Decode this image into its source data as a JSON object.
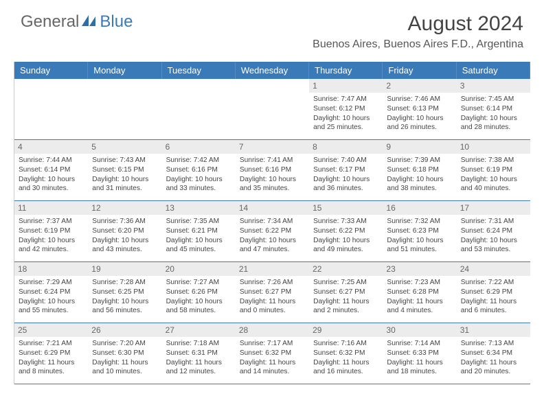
{
  "brand": {
    "part1": "General",
    "part2": "Blue"
  },
  "title": "August 2024",
  "location": "Buenos Aires, Buenos Aires F.D., Argentina",
  "colors": {
    "header_bg": "#3a7ab8",
    "header_text": "#ffffff",
    "daynum_bg": "#ececec",
    "border": "#3a7ab8",
    "body_text": "#444444",
    "page_bg": "#ffffff"
  },
  "day_headers": [
    "Sunday",
    "Monday",
    "Tuesday",
    "Wednesday",
    "Thursday",
    "Friday",
    "Saturday"
  ],
  "weeks": [
    [
      {
        "num": "",
        "sunrise": "",
        "sunset": "",
        "daylight1": "",
        "daylight2": ""
      },
      {
        "num": "",
        "sunrise": "",
        "sunset": "",
        "daylight1": "",
        "daylight2": ""
      },
      {
        "num": "",
        "sunrise": "",
        "sunset": "",
        "daylight1": "",
        "daylight2": ""
      },
      {
        "num": "",
        "sunrise": "",
        "sunset": "",
        "daylight1": "",
        "daylight2": ""
      },
      {
        "num": "1",
        "sunrise": "Sunrise: 7:47 AM",
        "sunset": "Sunset: 6:12 PM",
        "daylight1": "Daylight: 10 hours",
        "daylight2": "and 25 minutes."
      },
      {
        "num": "2",
        "sunrise": "Sunrise: 7:46 AM",
        "sunset": "Sunset: 6:13 PM",
        "daylight1": "Daylight: 10 hours",
        "daylight2": "and 26 minutes."
      },
      {
        "num": "3",
        "sunrise": "Sunrise: 7:45 AM",
        "sunset": "Sunset: 6:14 PM",
        "daylight1": "Daylight: 10 hours",
        "daylight2": "and 28 minutes."
      }
    ],
    [
      {
        "num": "4",
        "sunrise": "Sunrise: 7:44 AM",
        "sunset": "Sunset: 6:14 PM",
        "daylight1": "Daylight: 10 hours",
        "daylight2": "and 30 minutes."
      },
      {
        "num": "5",
        "sunrise": "Sunrise: 7:43 AM",
        "sunset": "Sunset: 6:15 PM",
        "daylight1": "Daylight: 10 hours",
        "daylight2": "and 31 minutes."
      },
      {
        "num": "6",
        "sunrise": "Sunrise: 7:42 AM",
        "sunset": "Sunset: 6:16 PM",
        "daylight1": "Daylight: 10 hours",
        "daylight2": "and 33 minutes."
      },
      {
        "num": "7",
        "sunrise": "Sunrise: 7:41 AM",
        "sunset": "Sunset: 6:16 PM",
        "daylight1": "Daylight: 10 hours",
        "daylight2": "and 35 minutes."
      },
      {
        "num": "8",
        "sunrise": "Sunrise: 7:40 AM",
        "sunset": "Sunset: 6:17 PM",
        "daylight1": "Daylight: 10 hours",
        "daylight2": "and 36 minutes."
      },
      {
        "num": "9",
        "sunrise": "Sunrise: 7:39 AM",
        "sunset": "Sunset: 6:18 PM",
        "daylight1": "Daylight: 10 hours",
        "daylight2": "and 38 minutes."
      },
      {
        "num": "10",
        "sunrise": "Sunrise: 7:38 AM",
        "sunset": "Sunset: 6:19 PM",
        "daylight1": "Daylight: 10 hours",
        "daylight2": "and 40 minutes."
      }
    ],
    [
      {
        "num": "11",
        "sunrise": "Sunrise: 7:37 AM",
        "sunset": "Sunset: 6:19 PM",
        "daylight1": "Daylight: 10 hours",
        "daylight2": "and 42 minutes."
      },
      {
        "num": "12",
        "sunrise": "Sunrise: 7:36 AM",
        "sunset": "Sunset: 6:20 PM",
        "daylight1": "Daylight: 10 hours",
        "daylight2": "and 43 minutes."
      },
      {
        "num": "13",
        "sunrise": "Sunrise: 7:35 AM",
        "sunset": "Sunset: 6:21 PM",
        "daylight1": "Daylight: 10 hours",
        "daylight2": "and 45 minutes."
      },
      {
        "num": "14",
        "sunrise": "Sunrise: 7:34 AM",
        "sunset": "Sunset: 6:22 PM",
        "daylight1": "Daylight: 10 hours",
        "daylight2": "and 47 minutes."
      },
      {
        "num": "15",
        "sunrise": "Sunrise: 7:33 AM",
        "sunset": "Sunset: 6:22 PM",
        "daylight1": "Daylight: 10 hours",
        "daylight2": "and 49 minutes."
      },
      {
        "num": "16",
        "sunrise": "Sunrise: 7:32 AM",
        "sunset": "Sunset: 6:23 PM",
        "daylight1": "Daylight: 10 hours",
        "daylight2": "and 51 minutes."
      },
      {
        "num": "17",
        "sunrise": "Sunrise: 7:31 AM",
        "sunset": "Sunset: 6:24 PM",
        "daylight1": "Daylight: 10 hours",
        "daylight2": "and 53 minutes."
      }
    ],
    [
      {
        "num": "18",
        "sunrise": "Sunrise: 7:29 AM",
        "sunset": "Sunset: 6:24 PM",
        "daylight1": "Daylight: 10 hours",
        "daylight2": "and 55 minutes."
      },
      {
        "num": "19",
        "sunrise": "Sunrise: 7:28 AM",
        "sunset": "Sunset: 6:25 PM",
        "daylight1": "Daylight: 10 hours",
        "daylight2": "and 56 minutes."
      },
      {
        "num": "20",
        "sunrise": "Sunrise: 7:27 AM",
        "sunset": "Sunset: 6:26 PM",
        "daylight1": "Daylight: 10 hours",
        "daylight2": "and 58 minutes."
      },
      {
        "num": "21",
        "sunrise": "Sunrise: 7:26 AM",
        "sunset": "Sunset: 6:27 PM",
        "daylight1": "Daylight: 11 hours",
        "daylight2": "and 0 minutes."
      },
      {
        "num": "22",
        "sunrise": "Sunrise: 7:25 AM",
        "sunset": "Sunset: 6:27 PM",
        "daylight1": "Daylight: 11 hours",
        "daylight2": "and 2 minutes."
      },
      {
        "num": "23",
        "sunrise": "Sunrise: 7:23 AM",
        "sunset": "Sunset: 6:28 PM",
        "daylight1": "Daylight: 11 hours",
        "daylight2": "and 4 minutes."
      },
      {
        "num": "24",
        "sunrise": "Sunrise: 7:22 AM",
        "sunset": "Sunset: 6:29 PM",
        "daylight1": "Daylight: 11 hours",
        "daylight2": "and 6 minutes."
      }
    ],
    [
      {
        "num": "25",
        "sunrise": "Sunrise: 7:21 AM",
        "sunset": "Sunset: 6:29 PM",
        "daylight1": "Daylight: 11 hours",
        "daylight2": "and 8 minutes."
      },
      {
        "num": "26",
        "sunrise": "Sunrise: 7:20 AM",
        "sunset": "Sunset: 6:30 PM",
        "daylight1": "Daylight: 11 hours",
        "daylight2": "and 10 minutes."
      },
      {
        "num": "27",
        "sunrise": "Sunrise: 7:18 AM",
        "sunset": "Sunset: 6:31 PM",
        "daylight1": "Daylight: 11 hours",
        "daylight2": "and 12 minutes."
      },
      {
        "num": "28",
        "sunrise": "Sunrise: 7:17 AM",
        "sunset": "Sunset: 6:32 PM",
        "daylight1": "Daylight: 11 hours",
        "daylight2": "and 14 minutes."
      },
      {
        "num": "29",
        "sunrise": "Sunrise: 7:16 AM",
        "sunset": "Sunset: 6:32 PM",
        "daylight1": "Daylight: 11 hours",
        "daylight2": "and 16 minutes."
      },
      {
        "num": "30",
        "sunrise": "Sunrise: 7:14 AM",
        "sunset": "Sunset: 6:33 PM",
        "daylight1": "Daylight: 11 hours",
        "daylight2": "and 18 minutes."
      },
      {
        "num": "31",
        "sunrise": "Sunrise: 7:13 AM",
        "sunset": "Sunset: 6:34 PM",
        "daylight1": "Daylight: 11 hours",
        "daylight2": "and 20 minutes."
      }
    ]
  ]
}
